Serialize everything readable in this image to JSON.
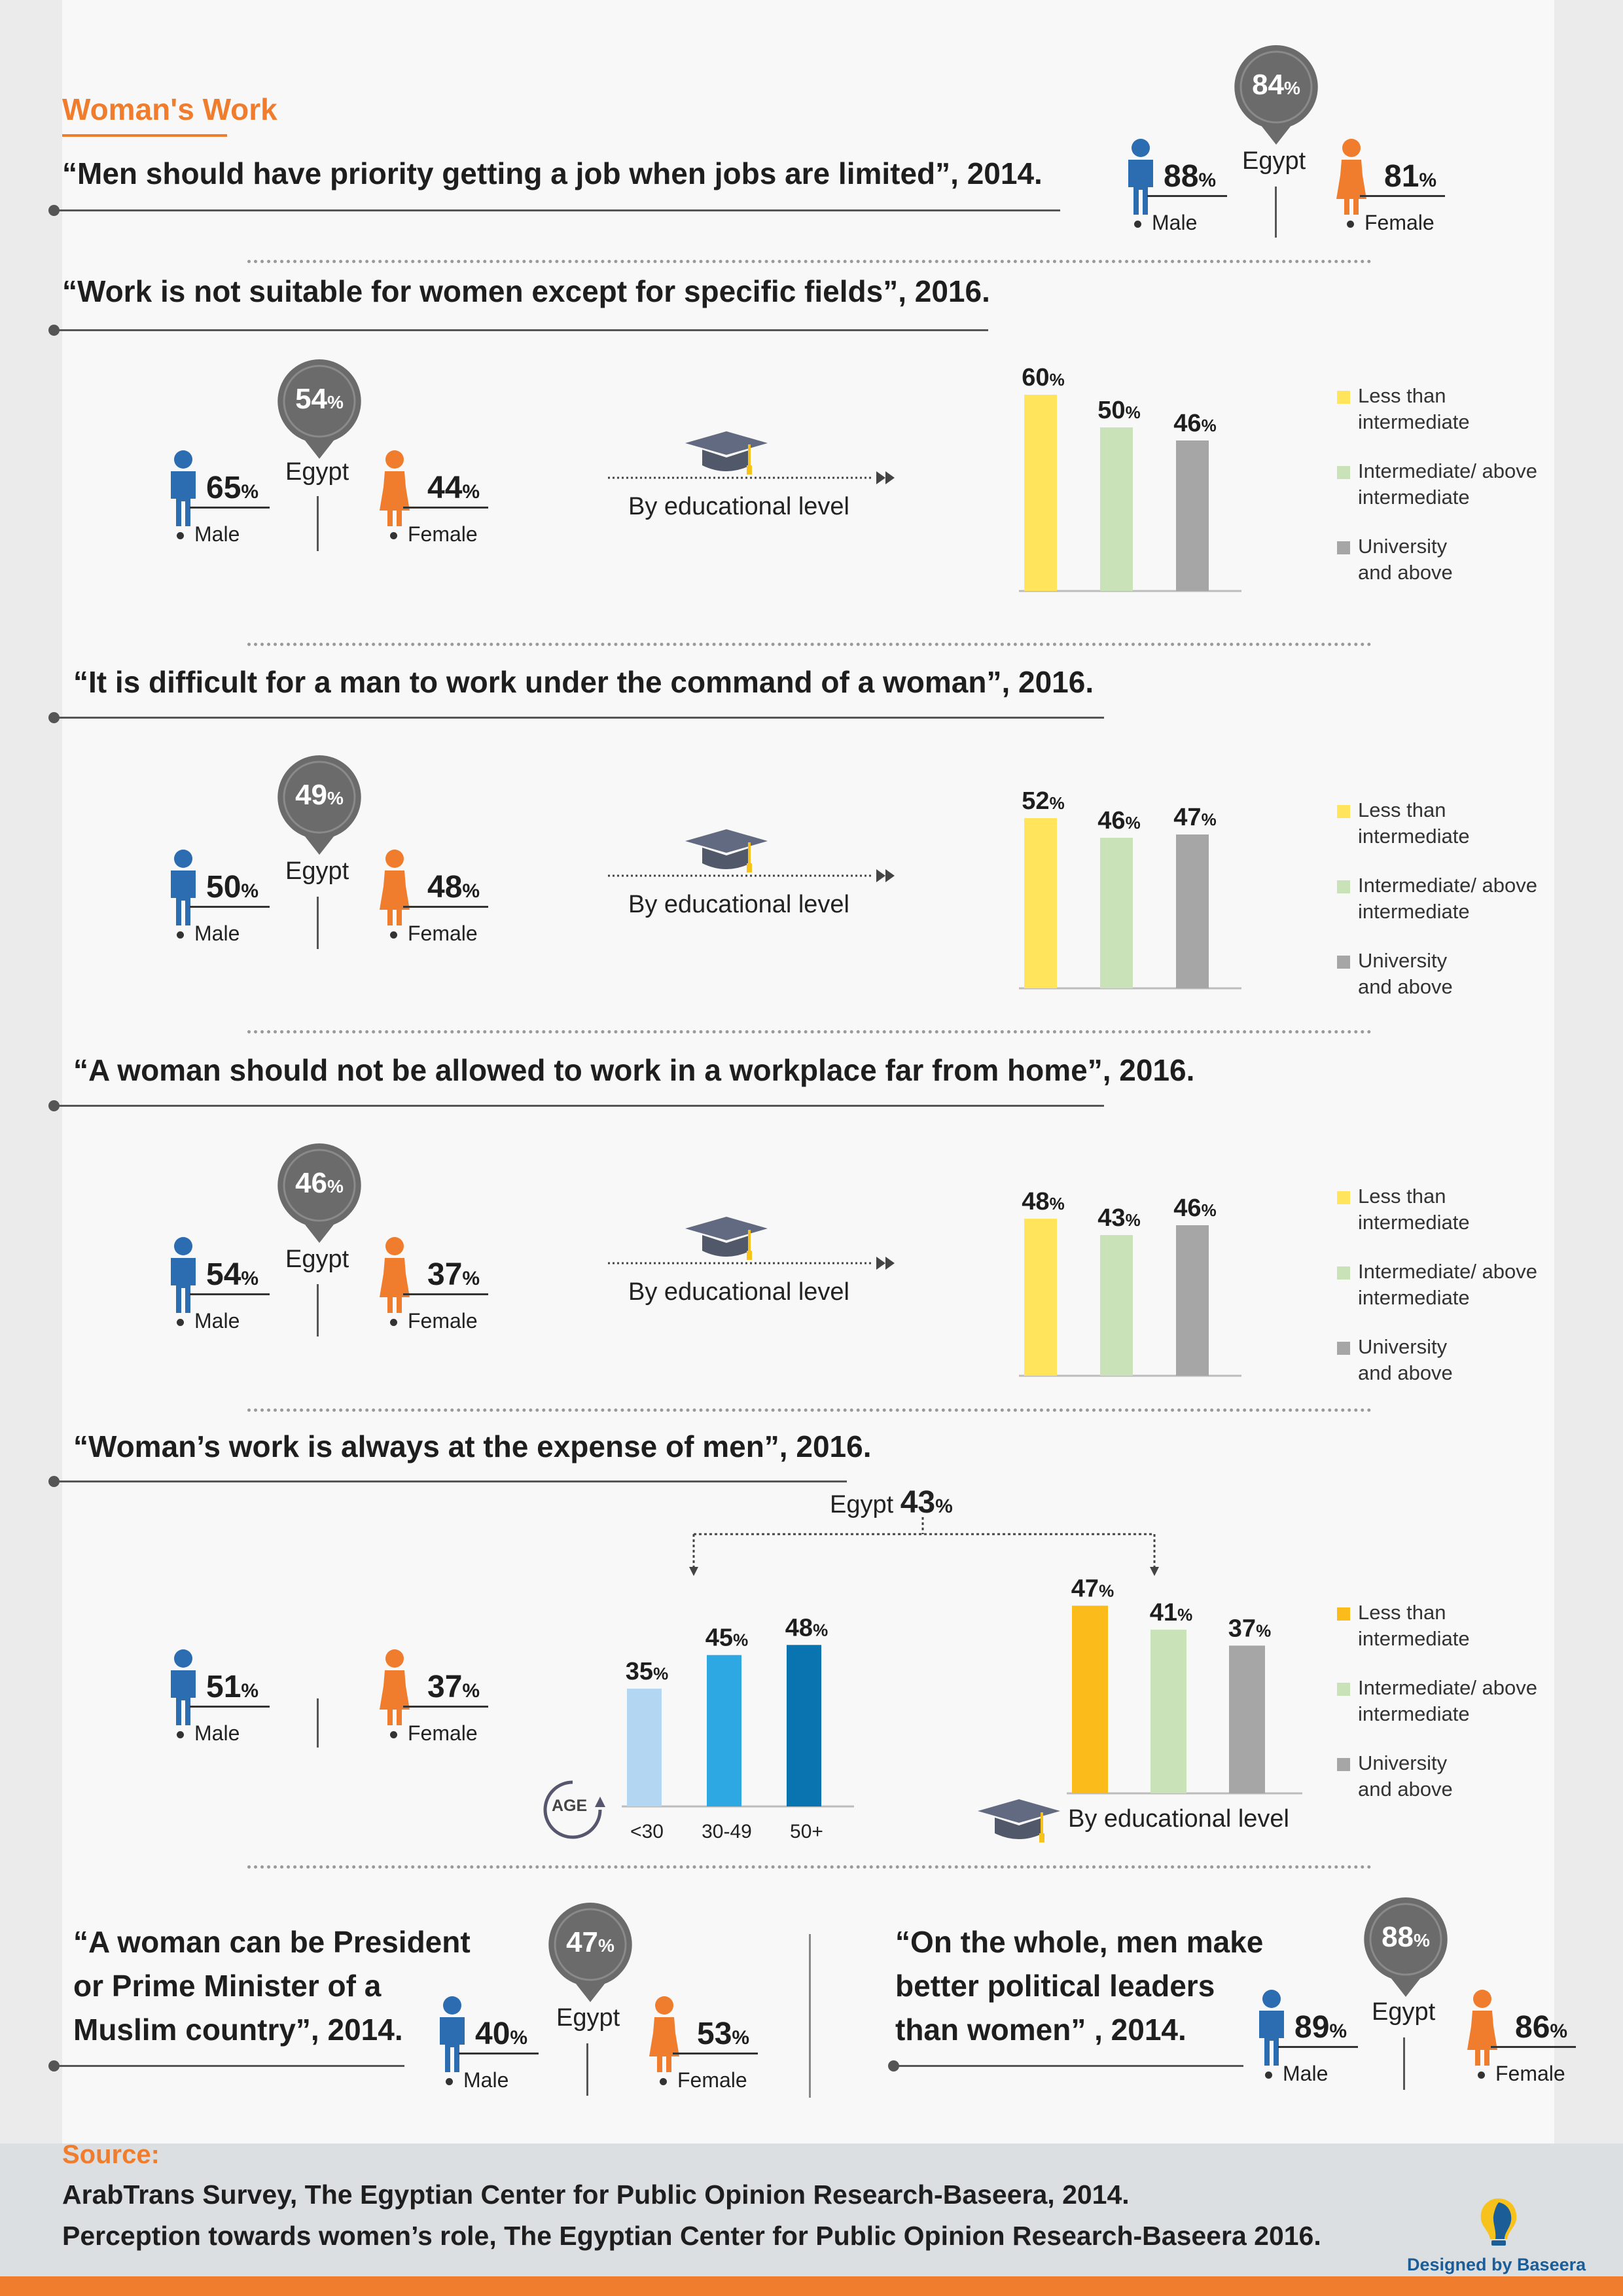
{
  "page": {
    "title": "Woman's Work",
    "egypt_label": "Egypt",
    "male_label": "Male",
    "female_label": "Female",
    "edu_label": "By educational level",
    "pct_unit": "%",
    "colors": {
      "male": "#2c6cb0",
      "female": "#ef7d2d",
      "pin": "#6b6b6b",
      "cap": "#616a80"
    }
  },
  "legend": {
    "items": [
      {
        "label_line1": "Less than",
        "label_line2": "intermediate",
        "color": "#ffe45c"
      },
      {
        "label_line1": "Intermediate/ above",
        "label_line2": "intermediate",
        "color": "#c9e2b8"
      },
      {
        "label_line1": "University",
        "label_line2": "and above",
        "color": "#a6a6a6"
      }
    ],
    "alt_first_color": "#fbbb1a"
  },
  "statements": [
    {
      "quote": "“Men should have priority getting a job when jobs are limited”, 2014.",
      "egypt": "84",
      "male": "88",
      "female": "81"
    },
    {
      "quote": "“Work is not suitable for women except for specific fields”, 2016.",
      "egypt": "54",
      "male": "65",
      "female": "44"
    },
    {
      "quote": "“It is difficult for a man to work under the command of a woman”, 2016.",
      "egypt": "49",
      "male": "50",
      "female": "48"
    },
    {
      "quote": "“A woman should not be allowed to work in a workplace far from home”, 2016.",
      "egypt": "46",
      "male": "54",
      "female": "37"
    },
    {
      "quote": "“Woman’s work is always at the expense of men”, 2016.",
      "egypt": "43",
      "male": "51",
      "female": "37"
    },
    {
      "quote_line1": "“A woman can be President",
      "quote_line2": "or Prime Minister of a",
      "quote_line3": "Muslim country”, 2014.",
      "egypt": "47",
      "male": "40",
      "female": "53"
    },
    {
      "quote_line1": "“On the whole, men make",
      "quote_line2": "better political leaders",
      "quote_line3": "than women” , 2014.",
      "egypt": "88",
      "male": "89",
      "female": "86"
    }
  ],
  "chart_data": [
    {
      "type": "bar",
      "title": "“Work is not suitable for women except for specific fields”, 2016.",
      "xlabel": "By educational level",
      "categories": [
        "Less than intermediate",
        "Intermediate/ above intermediate",
        "University and above"
      ],
      "values": [
        60,
        50,
        46
      ],
      "ylim": [
        0,
        60
      ]
    },
    {
      "type": "bar",
      "title": "“It is difficult for a man to work under the command of a woman”, 2016.",
      "xlabel": "By educational level",
      "categories": [
        "Less than intermediate",
        "Intermediate/ above intermediate",
        "University and above"
      ],
      "values": [
        52,
        46,
        47
      ],
      "ylim": [
        0,
        60
      ]
    },
    {
      "type": "bar",
      "title": "“A woman should not be allowed to work in a workplace far from home”, 2016.",
      "xlabel": "By educational level",
      "categories": [
        "Less than intermediate",
        "Intermediate/ above intermediate",
        "University and above"
      ],
      "values": [
        48,
        43,
        46
      ],
      "ylim": [
        0,
        60
      ]
    },
    {
      "type": "bar",
      "title": "“Woman’s work is always at the expense of men”, 2016.",
      "xlabel": "AGE",
      "categories": [
        "<30",
        "30-49",
        "50+"
      ],
      "values": [
        35,
        45,
        48
      ],
      "ylim": [
        0,
        60
      ],
      "colors": [
        "#b3d7f2",
        "#2ea8e2",
        "#0a74b0"
      ]
    },
    {
      "type": "bar",
      "title": "“Woman’s work is always at the expense of men”, 2016.",
      "xlabel": "By educational level",
      "categories": [
        "Less than intermediate",
        "Intermediate/ above intermediate",
        "University and above"
      ],
      "values": [
        47,
        41,
        37
      ],
      "ylim": [
        0,
        60
      ]
    }
  ],
  "age_badge": "AGE",
  "footer": {
    "source_label": "Source:",
    "line1": "ArabTrans Survey, The Egyptian Center for Public Opinion Research-Baseera, 2014.",
    "line2": "Perception towards women’s role, The Egyptian Center for Public Opinion Research-Baseera 2016.",
    "designed_by": "Designed by Baseera"
  }
}
